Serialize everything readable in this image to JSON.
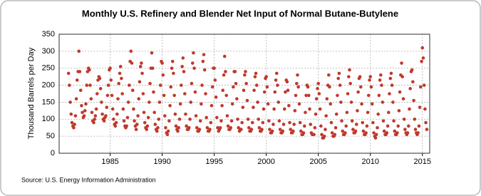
{
  "chart_data": {
    "type": "scatter",
    "title": "Monthly U.S. Refinery and Blender Net Input of Normal Butane-Butylene",
    "y_label": "Thousand Barrels per Day",
    "source": "Source: U.S. Energy Information Administration",
    "color": "#c0392b",
    "grid": true,
    "xlim": [
      1980.1,
      2015.7
    ],
    "xticks": [
      1985,
      1990,
      1995,
      2000,
      2005,
      2010,
      2015
    ],
    "ylim": [
      0,
      350
    ],
    "yticks": [
      0,
      50,
      100,
      150,
      200,
      250,
      300,
      350
    ],
    "x": [
      1981,
      1981.08,
      1981.17,
      1981.25,
      1981.33,
      1981.42,
      1981.5,
      1981.58,
      1981.67,
      1981.75,
      1981.83,
      1981.92,
      1982,
      1982.08,
      1982.17,
      1982.25,
      1982.33,
      1982.42,
      1982.5,
      1982.58,
      1982.67,
      1982.75,
      1982.83,
      1982.92,
      1983,
      1983.08,
      1983.17,
      1983.25,
      1983.33,
      1983.42,
      1983.5,
      1983.58,
      1983.67,
      1983.75,
      1983.83,
      1983.92,
      1984,
      1984.08,
      1984.17,
      1984.25,
      1984.33,
      1984.42,
      1984.5,
      1984.58,
      1984.67,
      1984.75,
      1984.83,
      1984.92,
      1985,
      1985.08,
      1985.17,
      1985.25,
      1985.33,
      1985.42,
      1985.5,
      1985.58,
      1985.67,
      1985.75,
      1985.83,
      1985.92,
      1986,
      1986.08,
      1986.17,
      1986.25,
      1986.33,
      1986.42,
      1986.5,
      1986.58,
      1986.67,
      1986.75,
      1986.83,
      1986.92,
      1987,
      1987.08,
      1987.17,
      1987.25,
      1987.33,
      1987.42,
      1987.5,
      1987.58,
      1987.67,
      1987.75,
      1987.83,
      1987.92,
      1988,
      1988.08,
      1988.17,
      1988.25,
      1988.33,
      1988.42,
      1988.5,
      1988.58,
      1988.67,
      1988.75,
      1988.83,
      1988.92,
      1989,
      1989.08,
      1989.17,
      1989.25,
      1989.33,
      1989.42,
      1989.5,
      1989.58,
      1989.67,
      1989.75,
      1989.83,
      1989.92,
      1990,
      1990.08,
      1990.17,
      1990.25,
      1990.33,
      1990.42,
      1990.5,
      1990.58,
      1990.67,
      1990.75,
      1990.83,
      1990.92,
      1991,
      1991.08,
      1991.17,
      1991.25,
      1991.33,
      1991.42,
      1991.5,
      1991.58,
      1991.67,
      1991.75,
      1991.83,
      1991.92,
      1992,
      1992.08,
      1992.17,
      1992.25,
      1992.33,
      1992.42,
      1992.5,
      1992.58,
      1992.67,
      1992.75,
      1992.83,
      1992.92,
      1993,
      1993.08,
      1993.17,
      1993.25,
      1993.33,
      1993.42,
      1993.5,
      1993.58,
      1993.67,
      1993.75,
      1993.83,
      1993.92,
      1994,
      1994.08,
      1994.17,
      1994.25,
      1994.33,
      1994.42,
      1994.5,
      1994.58,
      1994.67,
      1994.75,
      1994.83,
      1994.92,
      1995,
      1995.08,
      1995.17,
      1995.25,
      1995.33,
      1995.42,
      1995.5,
      1995.58,
      1995.67,
      1995.75,
      1995.83,
      1995.92,
      1996,
      1996.08,
      1996.17,
      1996.25,
      1996.33,
      1996.42,
      1996.5,
      1996.58,
      1996.67,
      1996.75,
      1996.83,
      1996.92,
      1997,
      1997.08,
      1997.17,
      1997.25,
      1997.33,
      1997.42,
      1997.5,
      1997.58,
      1997.67,
      1997.75,
      1997.83,
      1997.92,
      1998,
      1998.08,
      1998.17,
      1998.25,
      1998.33,
      1998.42,
      1998.5,
      1998.58,
      1998.67,
      1998.75,
      1998.83,
      1998.92,
      1999,
      1999.08,
      1999.17,
      1999.25,
      1999.33,
      1999.42,
      1999.5,
      1999.58,
      1999.67,
      1999.75,
      1999.83,
      1999.92,
      2000,
      2000.08,
      2000.17,
      2000.25,
      2000.33,
      2000.42,
      2000.5,
      2000.58,
      2000.67,
      2000.75,
      2000.83,
      2000.92,
      2001,
      2001.08,
      2001.17,
      2001.25,
      2001.33,
      2001.42,
      2001.5,
      2001.58,
      2001.67,
      2001.75,
      2001.83,
      2001.92,
      2002,
      2002.08,
      2002.17,
      2002.25,
      2002.33,
      2002.42,
      2002.5,
      2002.58,
      2002.67,
      2002.75,
      2002.83,
      2002.92,
      2003,
      2003.08,
      2003.17,
      2003.25,
      2003.33,
      2003.42,
      2003.5,
      2003.58,
      2003.67,
      2003.75,
      2003.83,
      2003.92,
      2004,
      2004.08,
      2004.17,
      2004.25,
      2004.33,
      2004.42,
      2004.5,
      2004.58,
      2004.67,
      2004.75,
      2004.83,
      2004.92,
      2005,
      2005.08,
      2005.17,
      2005.25,
      2005.33,
      2005.42,
      2005.5,
      2005.58,
      2005.67,
      2005.75,
      2005.83,
      2005.92,
      2006,
      2006.08,
      2006.17,
      2006.25,
      2006.33,
      2006.42,
      2006.5,
      2006.58,
      2006.67,
      2006.75,
      2006.83,
      2006.92,
      2007,
      2007.08,
      2007.17,
      2007.25,
      2007.33,
      2007.42,
      2007.5,
      2007.58,
      2007.67,
      2007.75,
      2007.83,
      2007.92,
      2008,
      2008.08,
      2008.17,
      2008.25,
      2008.33,
      2008.42,
      2008.5,
      2008.58,
      2008.67,
      2008.75,
      2008.83,
      2008.92,
      2009,
      2009.08,
      2009.17,
      2009.25,
      2009.33,
      2009.42,
      2009.5,
      2009.58,
      2009.67,
      2009.75,
      2009.83,
      2009.92,
      2010,
      2010.08,
      2010.17,
      2010.25,
      2010.33,
      2010.42,
      2010.5,
      2010.58,
      2010.67,
      2010.75,
      2010.83,
      2010.92,
      2011,
      2011.08,
      2011.17,
      2011.25,
      2011.33,
      2011.42,
      2011.5,
      2011.58,
      2011.67,
      2011.75,
      2011.83,
      2011.92,
      2012,
      2012.08,
      2012.17,
      2012.25,
      2012.33,
      2012.42,
      2012.5,
      2012.58,
      2012.67,
      2012.75,
      2012.83,
      2012.92,
      2013,
      2013.08,
      2013.17,
      2013.25,
      2013.33,
      2013.42,
      2013.5,
      2013.58,
      2013.67,
      2013.75,
      2013.83,
      2013.92,
      2014,
      2014.08,
      2014.17,
      2014.25,
      2014.33,
      2014.42,
      2014.5,
      2014.58,
      2014.67,
      2014.75,
      2014.83,
      2014.92,
      2015,
      2015.08,
      2015.17,
      2015.25,
      2015.33,
      2015.42
    ],
    "values": [
      235,
      200,
      150,
      115,
      90,
      80,
      75,
      85,
      110,
      160,
      215,
      240,
      300,
      240,
      185,
      140,
      120,
      105,
      110,
      125,
      145,
      200,
      240,
      250,
      245,
      200,
      160,
      120,
      95,
      90,
      100,
      110,
      130,
      175,
      215,
      225,
      220,
      190,
      150,
      115,
      100,
      95,
      105,
      110,
      135,
      170,
      200,
      245,
      250,
      215,
      170,
      130,
      100,
      85,
      80,
      90,
      115,
      160,
      205,
      235,
      255,
      220,
      175,
      130,
      95,
      80,
      75,
      80,
      105,
      150,
      200,
      270,
      300,
      265,
      185,
      130,
      95,
      80,
      70,
      85,
      110,
      160,
      210,
      255,
      265,
      235,
      175,
      120,
      90,
      75,
      70,
      80,
      105,
      150,
      205,
      250,
      295,
      250,
      180,
      120,
      85,
      70,
      65,
      75,
      100,
      150,
      200,
      270,
      265,
      230,
      170,
      110,
      75,
      60,
      55,
      65,
      95,
      140,
      195,
      250,
      270,
      235,
      170,
      115,
      80,
      70,
      65,
      75,
      100,
      145,
      200,
      255,
      280,
      240,
      175,
      115,
      80,
      70,
      70,
      75,
      100,
      150,
      205,
      265,
      295,
      250,
      180,
      110,
      75,
      65,
      65,
      70,
      95,
      145,
      200,
      270,
      290,
      245,
      175,
      105,
      75,
      65,
      65,
      70,
      90,
      140,
      195,
      250,
      250,
      215,
      165,
      105,
      75,
      65,
      70,
      75,
      95,
      140,
      185,
      230,
      285,
      240,
      170,
      110,
      80,
      70,
      70,
      75,
      95,
      145,
      195,
      240,
      240,
      205,
      160,
      100,
      75,
      65,
      70,
      70,
      90,
      135,
      185,
      230,
      240,
      205,
      155,
      100,
      75,
      65,
      65,
      70,
      90,
      135,
      185,
      225,
      235,
      200,
      150,
      100,
      75,
      65,
      65,
      70,
      90,
      130,
      180,
      220,
      225,
      195,
      145,
      95,
      70,
      60,
      60,
      65,
      85,
      130,
      180,
      215,
      235,
      200,
      150,
      95,
      70,
      60,
      60,
      65,
      85,
      130,
      180,
      215,
      210,
      185,
      140,
      90,
      70,
      60,
      60,
      65,
      85,
      125,
      170,
      205,
      230,
      195,
      145,
      90,
      65,
      55,
      55,
      60,
      80,
      120,
      170,
      200,
      195,
      170,
      130,
      85,
      60,
      55,
      55,
      55,
      75,
      115,
      160,
      190,
      205,
      175,
      130,
      80,
      55,
      45,
      45,
      50,
      70,
      110,
      160,
      200,
      230,
      195,
      145,
      90,
      60,
      50,
      50,
      55,
      75,
      115,
      170,
      220,
      235,
      200,
      150,
      95,
      65,
      55,
      55,
      60,
      80,
      120,
      175,
      225,
      245,
      205,
      150,
      95,
      70,
      60,
      60,
      65,
      85,
      125,
      180,
      220,
      225,
      195,
      145,
      90,
      65,
      55,
      55,
      60,
      80,
      120,
      170,
      215,
      225,
      195,
      145,
      90,
      60,
      50,
      45,
      55,
      75,
      115,
      170,
      215,
      230,
      200,
      150,
      95,
      65,
      55,
      55,
      60,
      80,
      120,
      175,
      220,
      235,
      200,
      150,
      95,
      65,
      55,
      55,
      60,
      80,
      125,
      180,
      230,
      265,
      225,
      160,
      100,
      70,
      60,
      55,
      60,
      80,
      130,
      190,
      240,
      245,
      210,
      155,
      100,
      70,
      60,
      55,
      60,
      80,
      135,
      195,
      270,
      310,
      280,
      200,
      130,
      90,
      70
    ]
  }
}
